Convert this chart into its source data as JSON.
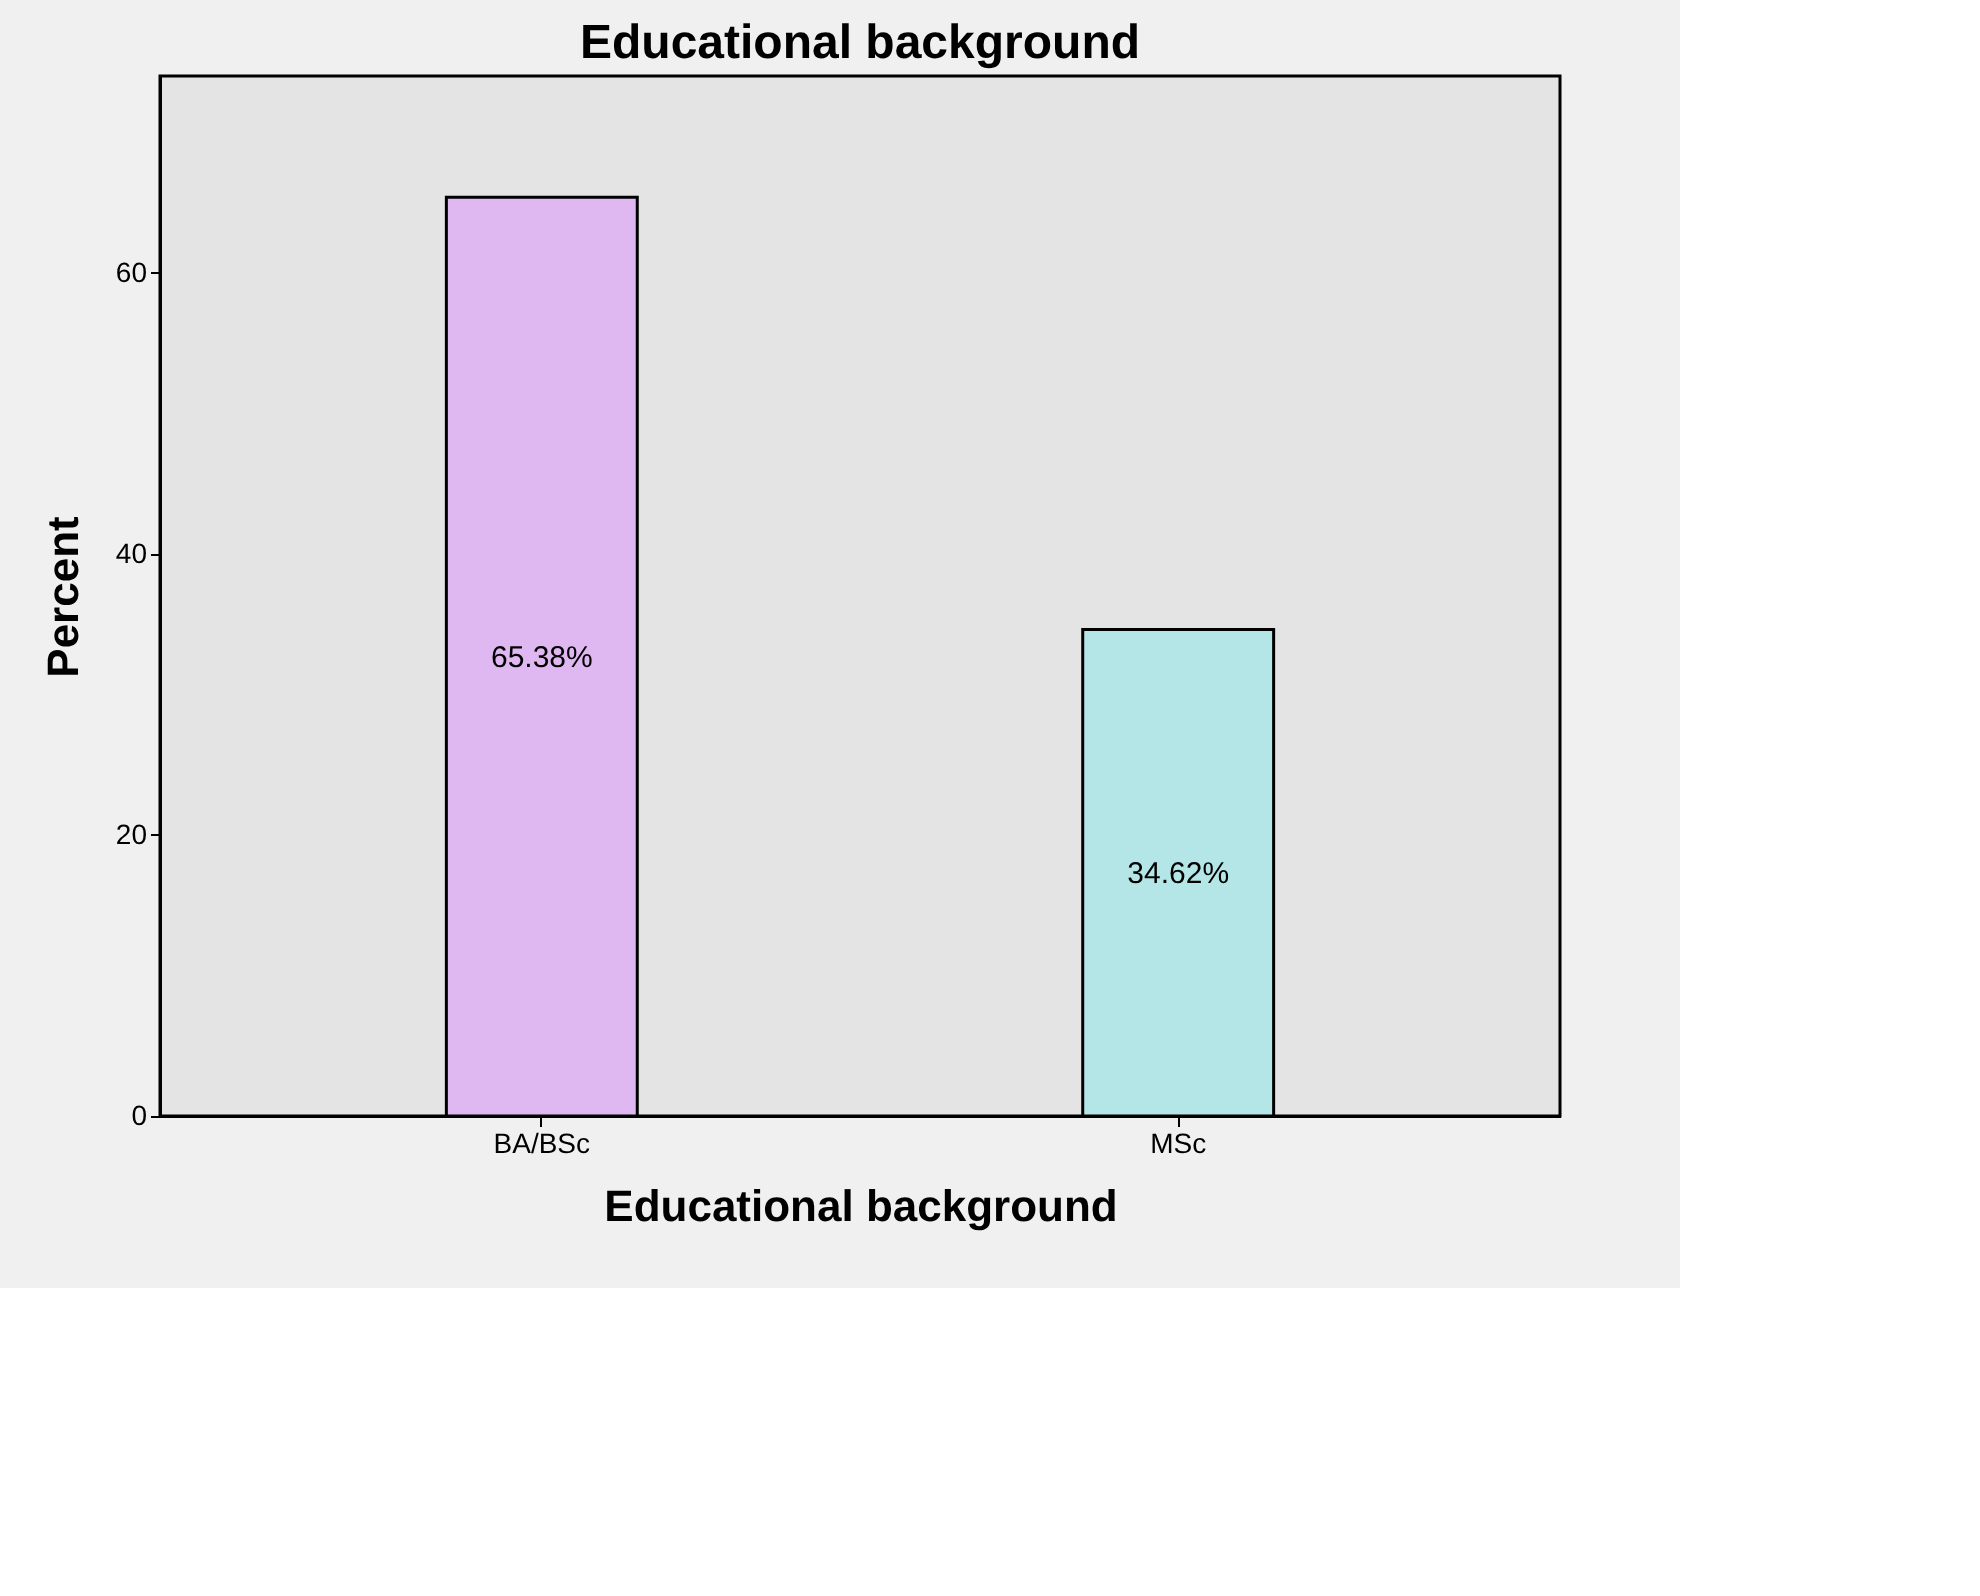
{
  "chart_data": {
    "type": "bar",
    "title": "Educational background",
    "xlabel": "Educational background",
    "ylabel": "Percent",
    "categories": [
      "BA/BSc",
      "MSc"
    ],
    "values": [
      65.38,
      34.62
    ],
    "colors": [
      "#dfb8f2",
      "#b4e6e8"
    ],
    "value_labels": [
      "65.38%",
      "34.62%"
    ],
    "ylim": [
      0,
      74
    ],
    "yticks": [
      0,
      20,
      40,
      60
    ],
    "grid": false
  }
}
